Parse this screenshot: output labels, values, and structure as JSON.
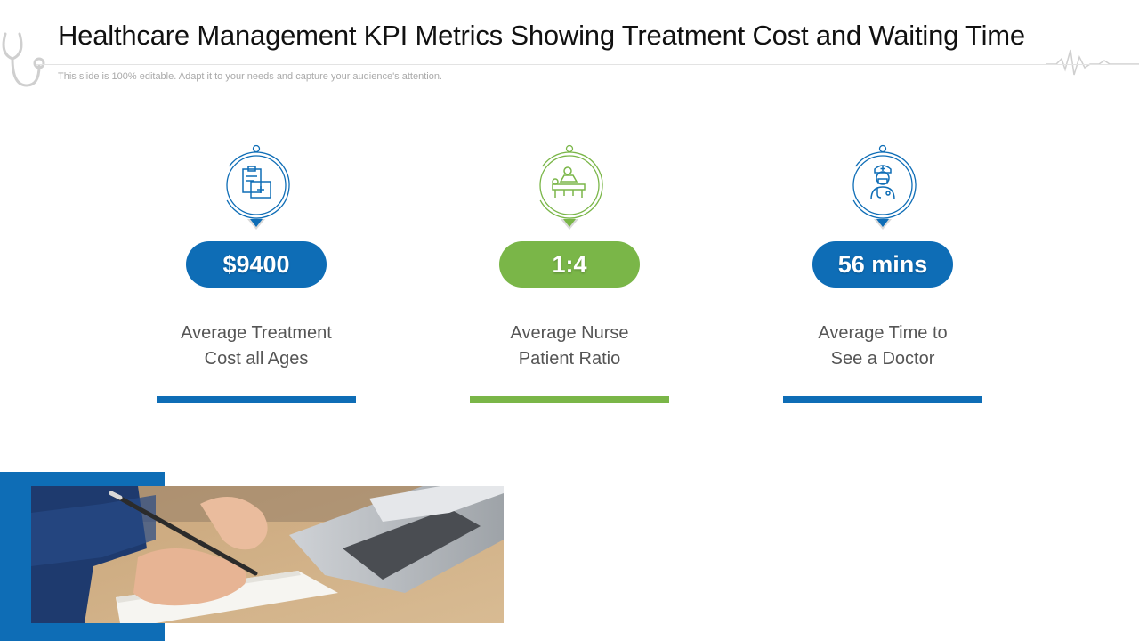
{
  "header": {
    "title": "Healthcare Management KPI Metrics Showing Treatment Cost and Waiting Time",
    "subtitle": "This slide is 100% editable. Adapt it to your needs and capture your audience's attention."
  },
  "colors": {
    "blue": "#0e6db6",
    "green": "#7ab648"
  },
  "kpis": [
    {
      "value": "$9400",
      "label_line1": "Average Treatment",
      "label_line2": "Cost all Ages",
      "icon": "medical-kit-icon",
      "color": "blue"
    },
    {
      "value": "1:4",
      "label_line1": "Average Nurse",
      "label_line2": "Patient Ratio",
      "icon": "nurse-patient-icon",
      "color": "green"
    },
    {
      "value": "56 mins",
      "label_line1": "Average Time to",
      "label_line2": "See a Doctor",
      "icon": "doctor-icon",
      "color": "blue"
    }
  ],
  "photo": {
    "subject": "hand-writing-notebook-laptop-photo"
  }
}
